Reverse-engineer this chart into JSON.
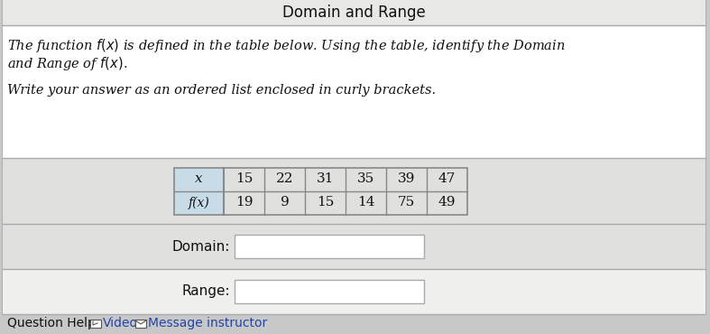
{
  "title": "Domain and Range",
  "desc_line1": "The function $f(x)$ is defined in the table below. Using the table, identify the Domain",
  "desc_line2": "and Range of $f(x)$.",
  "instruction": "Write your answer as an ordered list enclosed in curly brackets.",
  "x_label": "x",
  "fx_label": "f(x)",
  "x_values": [
    15,
    22,
    31,
    35,
    39,
    47
  ],
  "fx_values": [
    19,
    9,
    15,
    14,
    75,
    49
  ],
  "domain_label": "Domain:",
  "range_label": "Range:",
  "question_help": "Question Help:",
  "video_label": "Video",
  "message_label": "Message instructor",
  "bg_color": "#c8c8c8",
  "card_bg": "#ffffff",
  "title_row_bg": "#e8e8e6",
  "desc_row_bg": "#ffffff",
  "table_row_bg": "#e0e0de",
  "domain_row_bg": "#e0e0de",
  "range_row_bg": "#f0f0ee",
  "footer_bg": "#e8e8e6",
  "table_header_bg": "#c8dce8",
  "table_border": "#888888",
  "card_border": "#aaaaaa",
  "text_color": "#111111",
  "input_bg": "#ffffff",
  "input_border": "#aaaaaa",
  "link_color": "#2244aa"
}
